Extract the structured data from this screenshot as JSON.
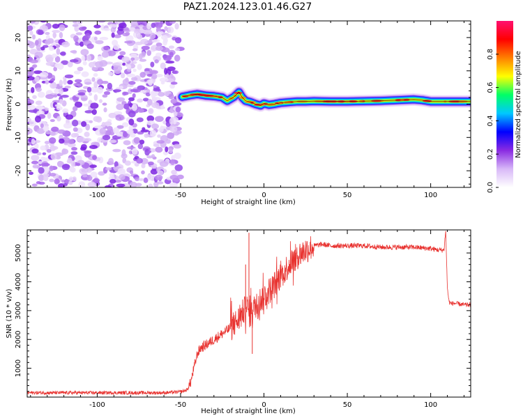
{
  "title": "PAZ1.2024.123.01.46.G27",
  "chart_data": [
    {
      "type": "heatmap",
      "xlabel": "Height of straight line (km)",
      "ylabel": "Frequency (Hz)",
      "xlim": [
        -142,
        124
      ],
      "ylim": [
        -25,
        25
      ],
      "xticks": [
        -100,
        -50,
        0,
        50,
        100
      ],
      "yticks": [
        -20,
        -10,
        0,
        10,
        20
      ],
      "noise_region_x": [
        -142,
        -50
      ],
      "signal_track": {
        "x": [
          -49,
          -45,
          -40,
          -35,
          -30,
          -25,
          -22,
          -18,
          -15,
          -13,
          -11,
          -8,
          -5,
          -2,
          0,
          3,
          6,
          10,
          15,
          20,
          25,
          30,
          40,
          50,
          60,
          70,
          80,
          85,
          90,
          95,
          100,
          110,
          124
        ],
        "y": [
          2.2,
          2.6,
          3.0,
          2.6,
          2.4,
          2.0,
          1.0,
          2.2,
          3.6,
          2.0,
          1.0,
          0.6,
          0.0,
          -0.4,
          0.2,
          -0.2,
          0.0,
          0.4,
          0.6,
          0.8,
          0.8,
          0.9,
          0.8,
          0.8,
          0.9,
          1.0,
          1.2,
          1.3,
          1.4,
          1.2,
          0.8,
          0.8,
          0.8
        ]
      },
      "colorbar": {
        "label": "Normalized spectral amplitude",
        "range": [
          0,
          1
        ],
        "ticks": [
          "0.0",
          "0.2",
          "0.4",
          "0.6",
          "0.8"
        ],
        "colors": [
          "#ffffff",
          "#d8b8f8",
          "#8a2be2",
          "#0000ff",
          "#00c8ff",
          "#00ff66",
          "#ffff00",
          "#ff8000",
          "#ff0000",
          "#ff1070"
        ]
      }
    },
    {
      "type": "line",
      "xlabel": "Height of straight line (km)",
      "ylabel": "SNR (10 * v/v)",
      "xlim": [
        -142,
        124
      ],
      "ylim": [
        0,
        5800
      ],
      "xticks": [
        -100,
        -50,
        0,
        50,
        100
      ],
      "yticks": [
        1000,
        2000,
        3000,
        4000,
        5000
      ],
      "color": "#e8312e",
      "series": [
        {
          "x": [
            -142,
            -100,
            -60,
            -50,
            -46,
            -44,
            -42,
            -40,
            -38,
            -35,
            -30,
            -25,
            -20,
            -15,
            -12,
            -10,
            -8,
            -5,
            0,
            5,
            10,
            15,
            20,
            25,
            30,
            35,
            40,
            50,
            60,
            70,
            80,
            90,
            100,
            105,
            108,
            109,
            110,
            111,
            112,
            115,
            120,
            124
          ],
          "y": [
            150,
            150,
            150,
            180,
            250,
            500,
            1000,
            1500,
            1700,
            1800,
            2000,
            2200,
            2400,
            2700,
            3000,
            3100,
            2800,
            3200,
            3500,
            3800,
            4200,
            4600,
            4900,
            5100,
            5250,
            5300,
            5250,
            5250,
            5250,
            5200,
            5200,
            5200,
            5150,
            5100,
            5100,
            5800,
            3800,
            3300,
            3250,
            3250,
            3200,
            3200
          ]
        }
      ],
      "spikes": [
        {
          "x": -11,
          "y": 4600
        },
        {
          "x": -9,
          "y": 5700
        },
        {
          "x": -7,
          "y": 1500
        }
      ]
    }
  ]
}
